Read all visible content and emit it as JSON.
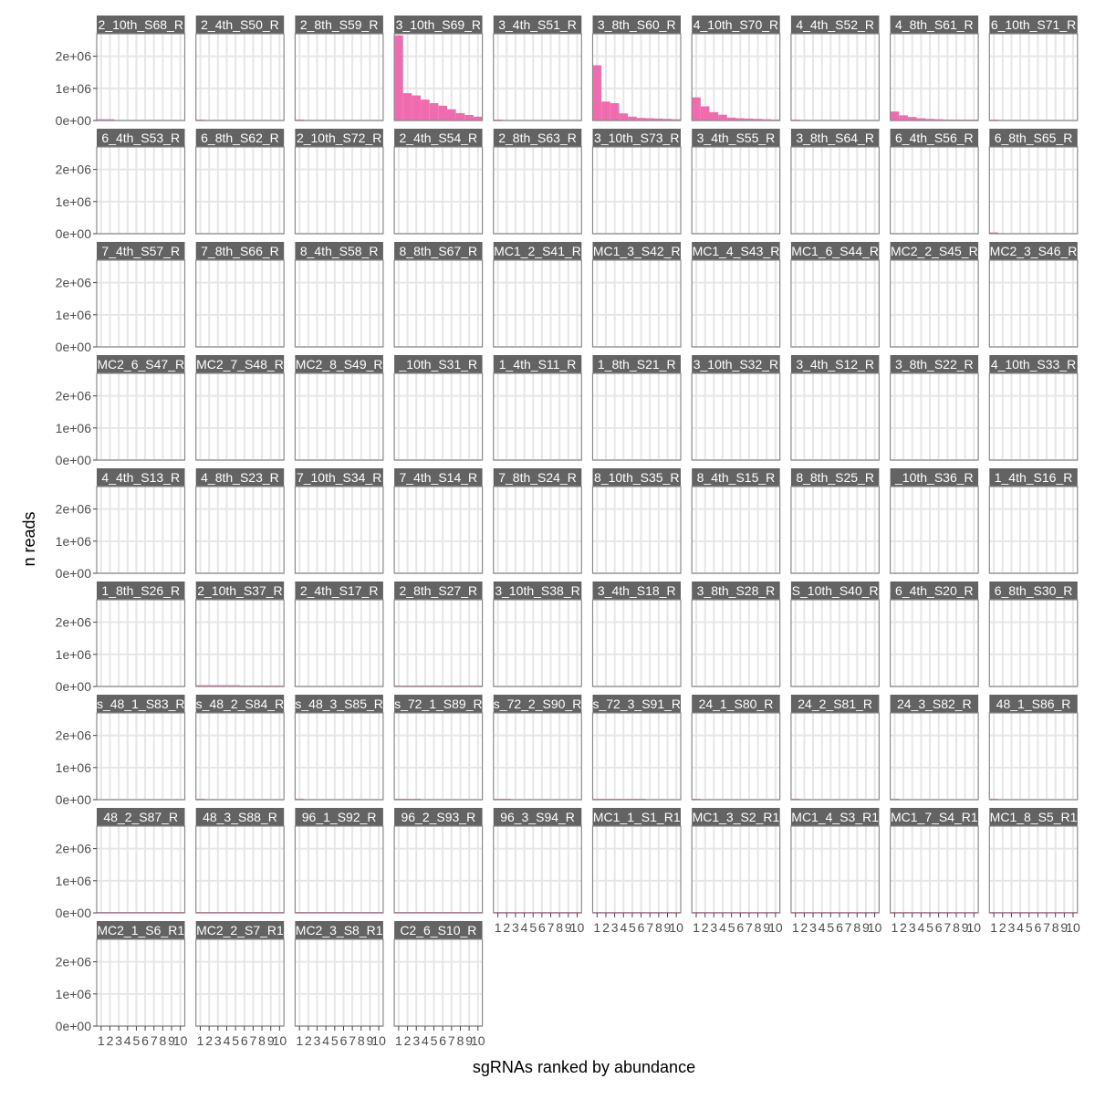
{
  "chart_data": {
    "type": "bar",
    "title": "",
    "xlabel": "sgRNAs ranked by abundance",
    "ylabel": "n reads",
    "ylim": [
      0,
      2700000
    ],
    "y_ticks": [
      0,
      1000000,
      2000000
    ],
    "y_tick_labels": [
      "0e+00",
      "1e+06",
      "2e+06"
    ],
    "x_ticks": [
      1,
      2,
      3,
      4,
      5,
      6,
      7,
      8,
      9,
      10
    ],
    "x_tick_labels": [
      "1",
      "2",
      "3",
      "4",
      "5",
      "6",
      "7",
      "8",
      "9",
      "10"
    ],
    "grid": true,
    "bar_color": "#f060a8",
    "strip_color": "#636363",
    "categories": [
      "1",
      "2",
      "3",
      "4",
      "5",
      "6",
      "7",
      "8",
      "9",
      "10"
    ],
    "facets": [
      {
        "label": "2_10th_S68_R",
        "values": [
          40000,
          40000,
          0,
          0,
          0,
          0,
          0,
          0,
          0,
          0
        ]
      },
      {
        "label": "2_4th_S50_R",
        "values": [
          15000,
          0,
          0,
          0,
          0,
          0,
          0,
          0,
          0,
          0
        ]
      },
      {
        "label": "2_8th_S59_R",
        "values": [
          30000,
          0,
          0,
          0,
          0,
          0,
          0,
          0,
          0,
          0
        ]
      },
      {
        "label": "3_10th_S69_R",
        "values": [
          2650000,
          850000,
          780000,
          650000,
          540000,
          460000,
          350000,
          230000,
          170000,
          120000
        ]
      },
      {
        "label": "3_4th_S51_R",
        "values": [
          10000,
          0,
          0,
          0,
          0,
          0,
          0,
          0,
          0,
          0
        ]
      },
      {
        "label": "3_8th_S60_R",
        "values": [
          1720000,
          590000,
          540000,
          220000,
          120000,
          80000,
          70000,
          60000,
          50000,
          40000
        ]
      },
      {
        "label": "4_10th_S70_R",
        "values": [
          720000,
          440000,
          260000,
          180000,
          90000,
          70000,
          60000,
          50000,
          40000,
          30000
        ]
      },
      {
        "label": "4_4th_S52_R",
        "values": [
          10000,
          0,
          0,
          0,
          0,
          0,
          0,
          0,
          0,
          0
        ]
      },
      {
        "label": "4_8th_S61_R",
        "values": [
          280000,
          160000,
          110000,
          70000,
          50000,
          40000,
          30000,
          20000,
          15000,
          10000
        ]
      },
      {
        "label": "6_10th_S71_R",
        "values": [
          10000,
          0,
          0,
          0,
          0,
          0,
          0,
          0,
          0,
          0
        ]
      },
      {
        "label": "6_4th_S53_R",
        "values": [
          0,
          0,
          0,
          0,
          0,
          0,
          0,
          0,
          0,
          0
        ]
      },
      {
        "label": "6_8th_S62_R",
        "values": [
          0,
          0,
          0,
          0,
          0,
          0,
          0,
          0,
          0,
          0
        ]
      },
      {
        "label": "2_10th_S72_R",
        "values": [
          0,
          0,
          0,
          0,
          0,
          0,
          0,
          0,
          0,
          0
        ]
      },
      {
        "label": "2_4th_S54_R",
        "values": [
          0,
          0,
          0,
          0,
          0,
          0,
          0,
          0,
          0,
          0
        ]
      },
      {
        "label": "2_8th_S63_R",
        "values": [
          0,
          0,
          0,
          0,
          0,
          0,
          0,
          0,
          0,
          0
        ]
      },
      {
        "label": "3_10th_S73_R",
        "values": [
          0,
          0,
          0,
          0,
          0,
          0,
          0,
          0,
          0,
          0
        ]
      },
      {
        "label": "3_4th_S55_R",
        "values": [
          0,
          0,
          0,
          0,
          0,
          0,
          0,
          0,
          0,
          0
        ]
      },
      {
        "label": "3_8th_S64_R",
        "values": [
          0,
          0,
          0,
          0,
          0,
          0,
          0,
          0,
          0,
          0
        ]
      },
      {
        "label": "6_4th_S56_R",
        "values": [
          0,
          0,
          0,
          0,
          0,
          0,
          0,
          0,
          0,
          0
        ]
      },
      {
        "label": "6_8th_S65_R",
        "values": [
          40000,
          0,
          0,
          0,
          0,
          0,
          0,
          0,
          0,
          0
        ]
      },
      {
        "label": "7_4th_S57_R",
        "values": [
          0,
          0,
          0,
          0,
          0,
          0,
          0,
          0,
          0,
          0
        ]
      },
      {
        "label": "7_8th_S66_R",
        "values": [
          0,
          0,
          0,
          0,
          0,
          0,
          0,
          0,
          0,
          0
        ]
      },
      {
        "label": "8_4th_S58_R",
        "values": [
          0,
          0,
          0,
          0,
          0,
          0,
          0,
          0,
          0,
          0
        ]
      },
      {
        "label": "8_8th_S67_R",
        "values": [
          0,
          0,
          0,
          0,
          0,
          0,
          0,
          0,
          0,
          0
        ]
      },
      {
        "label": "MC1_2_S41_R",
        "values": [
          0,
          0,
          0,
          0,
          0,
          0,
          0,
          0,
          0,
          0
        ]
      },
      {
        "label": "MC1_3_S42_R",
        "values": [
          0,
          0,
          0,
          0,
          0,
          0,
          0,
          0,
          0,
          0
        ]
      },
      {
        "label": "MC1_4_S43_R",
        "values": [
          0,
          0,
          0,
          0,
          0,
          0,
          0,
          0,
          0,
          0
        ]
      },
      {
        "label": "MC1_6_S44_R",
        "values": [
          0,
          0,
          0,
          0,
          0,
          0,
          0,
          0,
          0,
          0
        ]
      },
      {
        "label": "MC2_2_S45_R",
        "values": [
          0,
          0,
          0,
          0,
          0,
          0,
          0,
          0,
          0,
          0
        ]
      },
      {
        "label": "MC2_3_S46_R",
        "values": [
          0,
          0,
          0,
          0,
          0,
          0,
          0,
          0,
          0,
          0
        ]
      },
      {
        "label": "MC2_6_S47_R",
        "values": [
          0,
          0,
          0,
          0,
          0,
          0,
          0,
          0,
          0,
          0
        ]
      },
      {
        "label": "MC2_7_S48_R",
        "values": [
          0,
          0,
          0,
          0,
          0,
          0,
          0,
          0,
          0,
          0
        ]
      },
      {
        "label": "MC2_8_S49_R",
        "values": [
          0,
          0,
          0,
          0,
          0,
          0,
          0,
          0,
          0,
          0
        ]
      },
      {
        "label": "_10th_S31_R",
        "values": [
          0,
          0,
          0,
          0,
          0,
          0,
          0,
          0,
          0,
          0
        ]
      },
      {
        "label": "1_4th_S11_R",
        "values": [
          0,
          0,
          0,
          0,
          0,
          0,
          0,
          0,
          0,
          0
        ]
      },
      {
        "label": "1_8th_S21_R",
        "values": [
          0,
          0,
          0,
          0,
          0,
          0,
          0,
          0,
          0,
          0
        ]
      },
      {
        "label": "3_10th_S32_R",
        "values": [
          0,
          0,
          0,
          0,
          0,
          0,
          0,
          0,
          0,
          0
        ]
      },
      {
        "label": "3_4th_S12_R",
        "values": [
          0,
          0,
          0,
          0,
          0,
          0,
          0,
          0,
          0,
          0
        ]
      },
      {
        "label": "3_8th_S22_R",
        "values": [
          0,
          0,
          0,
          0,
          0,
          0,
          0,
          0,
          0,
          0
        ]
      },
      {
        "label": "4_10th_S33_R",
        "values": [
          0,
          0,
          0,
          0,
          0,
          0,
          0,
          0,
          0,
          0
        ]
      },
      {
        "label": "4_4th_S13_R",
        "values": [
          0,
          0,
          0,
          0,
          0,
          0,
          0,
          0,
          0,
          0
        ]
      },
      {
        "label": "4_8th_S23_R",
        "values": [
          0,
          0,
          0,
          0,
          0,
          0,
          0,
          0,
          0,
          0
        ]
      },
      {
        "label": "7_10th_S34_R",
        "values": [
          0,
          0,
          0,
          0,
          0,
          0,
          0,
          0,
          0,
          0
        ]
      },
      {
        "label": "7_4th_S14_R",
        "values": [
          0,
          0,
          0,
          0,
          0,
          0,
          0,
          0,
          0,
          0
        ]
      },
      {
        "label": "7_8th_S24_R",
        "values": [
          0,
          0,
          0,
          0,
          0,
          0,
          0,
          0,
          0,
          0
        ]
      },
      {
        "label": "8_10th_S35_R",
        "values": [
          0,
          0,
          0,
          0,
          0,
          0,
          0,
          0,
          0,
          0
        ]
      },
      {
        "label": "8_4th_S15_R",
        "values": [
          0,
          0,
          0,
          0,
          0,
          0,
          0,
          0,
          0,
          0
        ]
      },
      {
        "label": "8_8th_S25_R",
        "values": [
          0,
          0,
          0,
          0,
          0,
          0,
          0,
          0,
          0,
          0
        ]
      },
      {
        "label": "_10th_S36_R",
        "values": [
          0,
          0,
          0,
          0,
          0,
          0,
          0,
          0,
          0,
          0
        ]
      },
      {
        "label": "1_4th_S16_R",
        "values": [
          0,
          0,
          0,
          0,
          0,
          0,
          0,
          0,
          0,
          0
        ]
      },
      {
        "label": "1_8th_S26_R",
        "values": [
          0,
          0,
          0,
          0,
          0,
          0,
          0,
          0,
          0,
          0
        ]
      },
      {
        "label": "2_10th_S37_R",
        "values": [
          40000,
          40000,
          40000,
          40000,
          40000,
          20000,
          20000,
          20000,
          20000,
          20000
        ]
      },
      {
        "label": "2_4th_S17_R",
        "values": [
          0,
          0,
          0,
          0,
          0,
          0,
          0,
          0,
          0,
          0
        ]
      },
      {
        "label": "2_8th_S27_R",
        "values": [
          20000,
          20000,
          20000,
          20000,
          20000,
          20000,
          20000,
          20000,
          20000,
          20000
        ]
      },
      {
        "label": "3_10th_S38_R",
        "values": [
          0,
          0,
          0,
          0,
          0,
          0,
          0,
          0,
          0,
          0
        ]
      },
      {
        "label": "3_4th_S18_R",
        "values": [
          0,
          0,
          0,
          0,
          0,
          0,
          0,
          0,
          0,
          0
        ]
      },
      {
        "label": "3_8th_S28_R",
        "values": [
          0,
          0,
          0,
          0,
          0,
          0,
          0,
          0,
          0,
          0
        ]
      },
      {
        "label": "S_10th_S40_R",
        "values": [
          0,
          0,
          0,
          0,
          0,
          0,
          0,
          0,
          0,
          0
        ]
      },
      {
        "label": "6_4th_S20_R",
        "values": [
          0,
          0,
          0,
          0,
          0,
          0,
          0,
          0,
          0,
          0
        ]
      },
      {
        "label": "6_8th_S30_R",
        "values": [
          0,
          0,
          0,
          0,
          0,
          0,
          0,
          0,
          0,
          0
        ]
      },
      {
        "label": "s_48_1_S83_R",
        "values": [
          0,
          0,
          0,
          0,
          0,
          0,
          0,
          0,
          0,
          0
        ]
      },
      {
        "label": "s_48_2_S84_R",
        "values": [
          20000,
          0,
          0,
          0,
          0,
          0,
          0,
          0,
          0,
          0
        ]
      },
      {
        "label": "s_48_3_S85_R",
        "values": [
          30000,
          0,
          0,
          0,
          0,
          0,
          0,
          0,
          0,
          0
        ]
      },
      {
        "label": "s_72_1_S89_R",
        "values": [
          20000,
          20000,
          20000,
          0,
          0,
          0,
          0,
          0,
          0,
          0
        ]
      },
      {
        "label": "s_72_2_S90_R",
        "values": [
          20000,
          20000,
          0,
          0,
          0,
          0,
          0,
          0,
          0,
          0
        ]
      },
      {
        "label": "s_72_3_S91_R",
        "values": [
          15000,
          15000,
          15000,
          15000,
          15000,
          15000,
          0,
          0,
          0,
          0
        ]
      },
      {
        "label": "24_1_S80_R",
        "values": [
          20000,
          0,
          0,
          0,
          0,
          0,
          0,
          0,
          0,
          0
        ]
      },
      {
        "label": "24_2_S81_R",
        "values": [
          30000,
          0,
          0,
          0,
          0,
          0,
          0,
          0,
          0,
          0
        ]
      },
      {
        "label": "24_3_S82_R",
        "values": [
          30000,
          0,
          0,
          0,
          0,
          0,
          0,
          0,
          0,
          0
        ]
      },
      {
        "label": "48_1_S86_R",
        "values": [
          30000,
          0,
          0,
          0,
          0,
          0,
          0,
          0,
          0,
          0
        ]
      },
      {
        "label": "48_2_S87_R",
        "values": [
          10000,
          10000,
          10000,
          10000,
          10000,
          10000,
          10000,
          10000,
          10000,
          10000
        ]
      },
      {
        "label": "48_3_S88_R",
        "values": [
          10000,
          10000,
          10000,
          10000,
          10000,
          10000,
          10000,
          10000,
          10000,
          10000
        ]
      },
      {
        "label": "96_1_S92_R",
        "values": [
          10000,
          10000,
          10000,
          10000,
          10000,
          10000,
          10000,
          10000,
          10000,
          10000
        ]
      },
      {
        "label": "96_2_S93_R",
        "values": [
          10000,
          10000,
          10000,
          10000,
          10000,
          10000,
          10000,
          10000,
          10000,
          10000
        ]
      },
      {
        "label": "96_3_S94_R",
        "values": [
          10000,
          10000,
          10000,
          10000,
          10000,
          10000,
          10000,
          10000,
          10000,
          10000
        ]
      },
      {
        "label": "MC1_1_S1_R1",
        "values": [
          10000,
          10000,
          10000,
          10000,
          10000,
          10000,
          10000,
          10000,
          10000,
          10000
        ]
      },
      {
        "label": "MC1_3_S2_R1",
        "values": [
          10000,
          10000,
          10000,
          10000,
          10000,
          10000,
          10000,
          10000,
          10000,
          10000
        ]
      },
      {
        "label": "MC1_4_S3_R1",
        "values": [
          10000,
          10000,
          10000,
          10000,
          10000,
          10000,
          10000,
          10000,
          10000,
          10000
        ]
      },
      {
        "label": "MC1_7_S4_R1",
        "values": [
          10000,
          10000,
          10000,
          10000,
          10000,
          10000,
          10000,
          10000,
          10000,
          10000
        ]
      },
      {
        "label": "MC1_8_S5_R1",
        "values": [
          10000,
          10000,
          10000,
          10000,
          10000,
          10000,
          10000,
          10000,
          10000,
          10000
        ]
      },
      {
        "label": "MC2_1_S6_R1",
        "values": [
          0,
          0,
          0,
          0,
          0,
          0,
          0,
          0,
          0,
          0
        ]
      },
      {
        "label": "MC2_2_S7_R1",
        "values": [
          0,
          0,
          0,
          0,
          0,
          0,
          0,
          0,
          0,
          0
        ]
      },
      {
        "label": "MC2_3_S8_R1",
        "values": [
          0,
          0,
          0,
          0,
          0,
          0,
          0,
          0,
          0,
          0
        ]
      },
      {
        "label": "C2_6_S10_R",
        "values": [
          0,
          0,
          0,
          0,
          0,
          0,
          0,
          0,
          0,
          0
        ]
      }
    ]
  }
}
